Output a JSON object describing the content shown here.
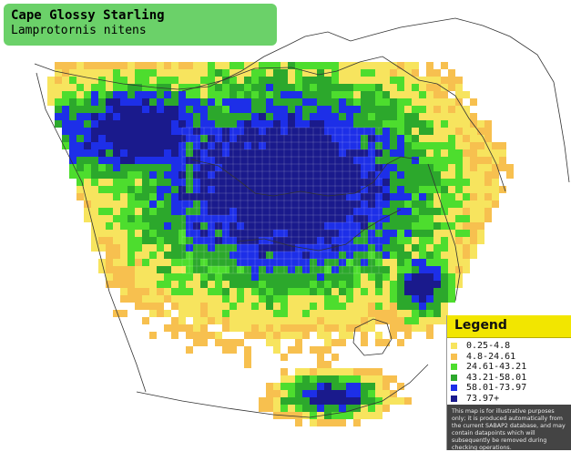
{
  "title": {
    "common_name": "Cape Glossy Starling",
    "scientific_name": "Lamprotornis nitens",
    "bg_color": "#6bd169"
  },
  "legend": {
    "heading": "Legend",
    "header_color": "#f2e600",
    "items": [
      {
        "label": "0.25-4.8",
        "color": "#f7e45e"
      },
      {
        "label": "4.8-24.61",
        "color": "#f7c04f"
      },
      {
        "label": "24.61-43.21",
        "color": "#4ddd2e"
      },
      {
        "label": "43.21-58.01",
        "color": "#2ca82c"
      },
      {
        "label": "58.01-73.97",
        "color": "#1d2fe8"
      },
      {
        "label": "73.97+",
        "color": "#1a1a8c"
      }
    ],
    "disclaimer": "This map is for illustrative purposes only; it is produced automatically from the current SABAP2 database, and may contain datapoints which will subsequently be removed during checking operations."
  },
  "map": {
    "land_color": "#ffffff",
    "border_color": "#333333",
    "grid_color": "#ffffff"
  }
}
